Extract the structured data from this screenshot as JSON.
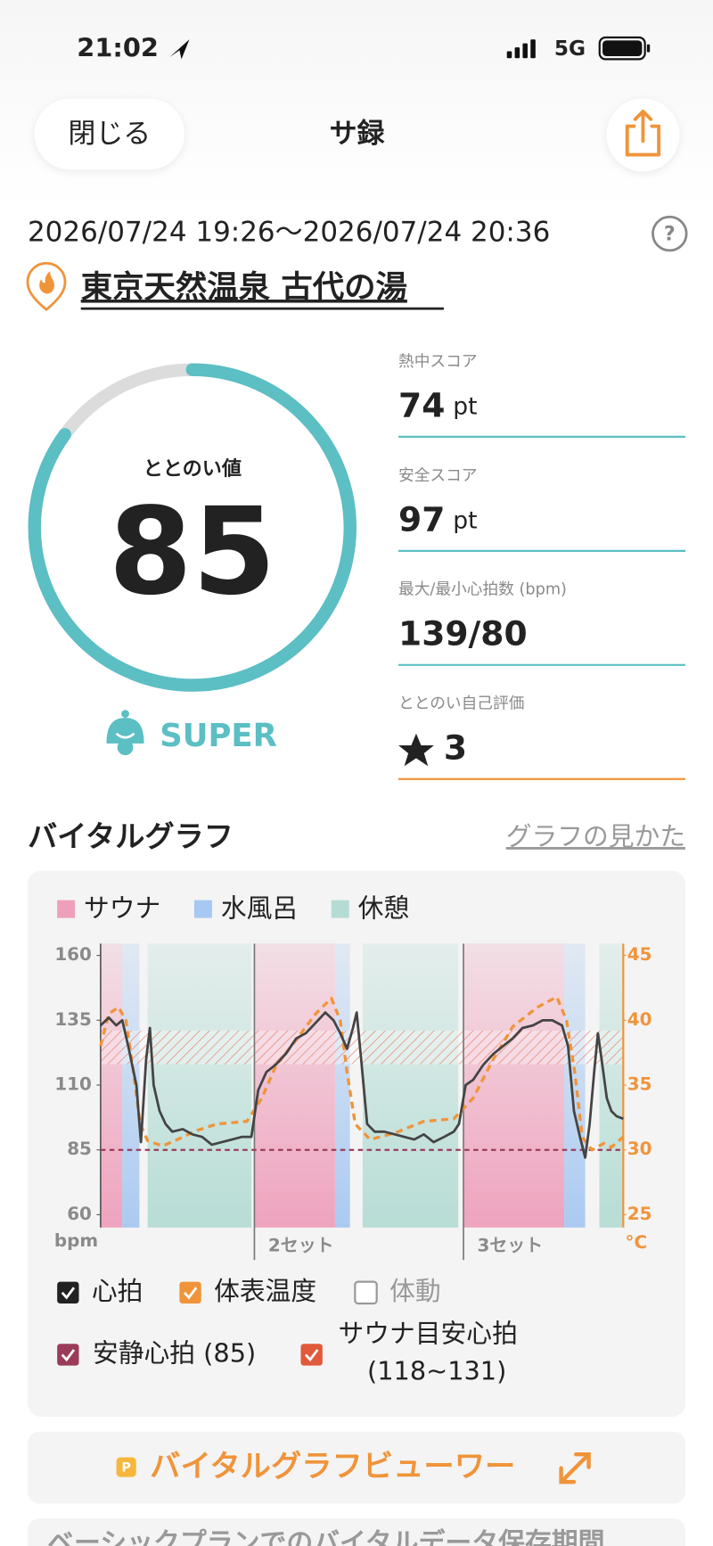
{
  "status_bar": {
    "time": "21:02",
    "network": "5G"
  },
  "header": {
    "close": "閉じる",
    "title": "サ録"
  },
  "session": {
    "period": "2026/07/24 19:26～2026/07/24 20:36",
    "facility": "東京天然温泉 古代の湯"
  },
  "score": {
    "label": "ととのい値",
    "value": 85,
    "range": [
      0,
      100
    ],
    "rank": "SUPER",
    "color": "#5bbfc4"
  },
  "stats": [
    {
      "label": "熱中スコア",
      "value": 74,
      "unit": "pt"
    },
    {
      "label": "安全スコア",
      "value": 97,
      "unit": "pt"
    },
    {
      "label": "最大/最小心拍数 (bpm)",
      "value": "139/80"
    },
    {
      "label": "ととのい自己評価",
      "value": 3
    }
  ],
  "vital_graph": {
    "title": "バイタルグラフ",
    "help_link": "グラフの見かた",
    "chart_data": {
      "type": "line",
      "phase_types": [
        {
          "name": "サウナ",
          "color": "#ee9fbb"
        },
        {
          "name": "水風呂",
          "color": "#a7c8f1"
        },
        {
          "name": "休憩",
          "color": "#b4dcd4"
        }
      ],
      "phases": [
        {
          "type": 0,
          "start": 0,
          "end": 2.9
        },
        {
          "type": 1,
          "start": 2.9,
          "end": 5.2
        },
        {
          "type": 2,
          "start": 6.3,
          "end": 20.2
        },
        {
          "type": 0,
          "start": 20.6,
          "end": 31.4
        },
        {
          "type": 1,
          "start": 31.4,
          "end": 33.4
        },
        {
          "type": 2,
          "start": 35.1,
          "end": 47.9
        },
        {
          "type": 0,
          "start": 48.6,
          "end": 62.1
        },
        {
          "type": 1,
          "start": 62.1,
          "end": 64.9
        },
        {
          "type": 2,
          "start": 66.8,
          "end": 70
        }
      ],
      "sets": [
        {
          "x": 20.6,
          "label": "2セット"
        },
        {
          "x": 48.6,
          "label": "3セット"
        }
      ],
      "xlim": [
        0,
        70
      ],
      "ylim": [
        60,
        160
      ],
      "yticks": [
        60,
        85,
        110,
        135,
        160
      ],
      "y_unit": "bpm",
      "y2lim": [
        25,
        45
      ],
      "y2ticks": [
        25,
        30,
        35,
        40,
        45
      ],
      "y2_unit": "°C",
      "series": [
        {
          "name": "心拍",
          "color": "#444444",
          "checked": true,
          "x": [
            0,
            1.1,
            2.1,
            2.9,
            3.7,
            4.8,
            5.4,
            6.1,
            6.6,
            7.1,
            7.9,
            8.7,
            9.6,
            11.0,
            12.3,
            13.6,
            14.9,
            16.2,
            17.6,
            18.9,
            20.2,
            21.1,
            22.2,
            23.5,
            24.8,
            26.2,
            27.5,
            28.8,
            30.1,
            31.2,
            32.1,
            33.0,
            33.8,
            34.3,
            34.9,
            35.7,
            36.7,
            38.0,
            39.4,
            40.7,
            42.0,
            43.3,
            44.6,
            46.0,
            47.3,
            48.0,
            48.9,
            49.9,
            51.3,
            52.6,
            53.9,
            55.2,
            56.5,
            57.9,
            59.2,
            60.5,
            61.8,
            62.6,
            63.4,
            64.2,
            64.9,
            65.5,
            66.1,
            66.6,
            67.1,
            67.8,
            68.4,
            69.1,
            70
          ],
          "values": [
            133,
            136,
            133,
            135,
            125,
            110,
            88,
            120,
            132,
            110,
            100,
            95,
            92,
            93,
            91,
            90,
            87,
            88,
            89,
            90,
            90,
            108,
            115,
            118,
            122,
            128,
            130,
            134,
            138,
            135,
            130,
            124,
            132,
            138,
            120,
            95,
            92,
            92,
            91,
            90,
            89,
            91,
            88,
            90,
            92,
            95,
            110,
            112,
            118,
            122,
            125,
            128,
            132,
            133,
            135,
            135,
            133,
            125,
            100,
            90,
            82,
            95,
            115,
            130,
            120,
            105,
            100,
            98,
            97
          ]
        },
        {
          "name": "体表温度",
          "color": "#f0943a",
          "axis": "y2",
          "checked": true,
          "x": [
            0,
            1.1,
            2.4,
            3.4,
            4.4,
            5.3,
            6.3,
            8.3,
            10.3,
            12.9,
            15.6,
            19.6,
            21.6,
            23.5,
            26.2,
            28.8,
            30.9,
            32.1,
            33.0,
            34.1,
            36.1,
            39.4,
            43.3,
            47.3,
            49.9,
            52.6,
            55.2,
            58.5,
            61.1,
            62.4,
            63.5,
            64.5,
            65.8,
            67.4,
            68.4,
            70
          ],
          "values": [
            38,
            40.5,
            41,
            40,
            36,
            32,
            30.7,
            30.3,
            30.8,
            31.5,
            32,
            32.2,
            34,
            36.5,
            38.5,
            40.5,
            41.7,
            40,
            36,
            32,
            30.8,
            31.3,
            32.2,
            32.4,
            34,
            37,
            39.5,
            41,
            41.8,
            40,
            36,
            31,
            30,
            30.5,
            30.2,
            31
          ]
        }
      ],
      "toggles": [
        {
          "name": "体動",
          "checked": false
        }
      ],
      "reference_line": {
        "name": "安静心拍 (85)",
        "value": 85,
        "color": "#9b3b5a"
      },
      "target_band": {
        "name": "サウナ目安心拍",
        "range_label": "(118~131)",
        "low": 118,
        "high": 131,
        "color": "#e0593a"
      }
    }
  },
  "viewer": {
    "badge": "P",
    "label": "バイタルグラフビューワー"
  },
  "notice": "ベーシックプランでのバイタルデータ保存期間"
}
